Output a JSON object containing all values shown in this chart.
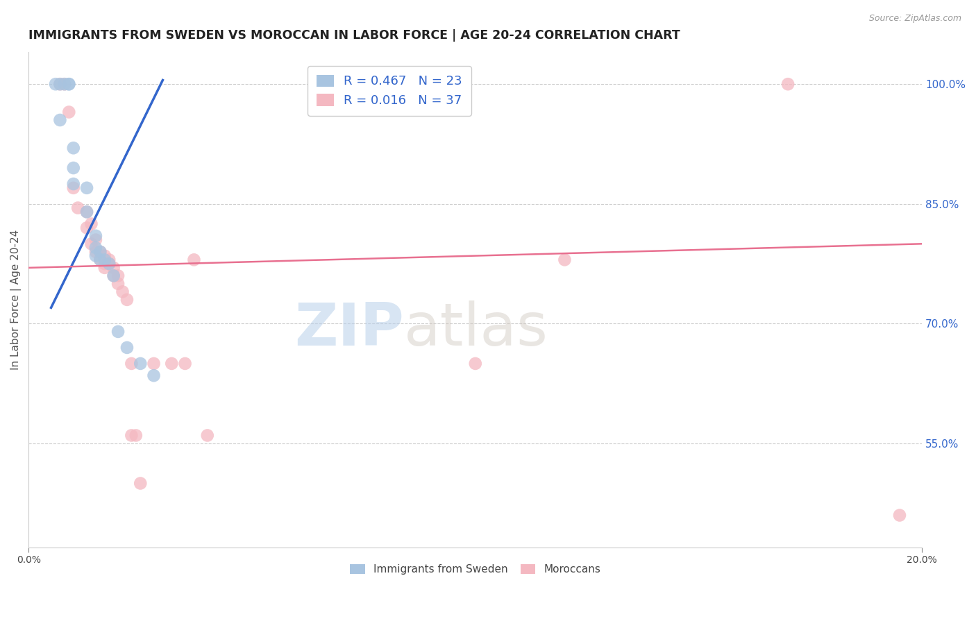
{
  "title": "IMMIGRANTS FROM SWEDEN VS MOROCCAN IN LABOR FORCE | AGE 20-24 CORRELATION CHART",
  "source": "Source: ZipAtlas.com",
  "ylabel": "In Labor Force | Age 20-24",
  "xlim": [
    0.0,
    0.2
  ],
  "ylim": [
    0.42,
    1.04
  ],
  "yticks": [
    0.55,
    0.7,
    0.85,
    1.0
  ],
  "yticklabels": [
    "55.0%",
    "70.0%",
    "85.0%",
    "100.0%"
  ],
  "sweden_color": "#a8c4e0",
  "moroccan_color": "#f4b8c1",
  "sweden_line_color": "#3366cc",
  "moroccan_line_color": "#e87090",
  "legend_r_color": "#3366cc",
  "watermark_zip": "ZIP",
  "watermark_atlas": "atlas",
  "sweden_R": "R = 0.467",
  "sweden_N": "N = 23",
  "moroccan_R": "R = 0.016",
  "moroccan_N": "N = 37",
  "sweden_points": [
    [
      0.006,
      1.0
    ],
    [
      0.007,
      1.0
    ],
    [
      0.007,
      0.955
    ],
    [
      0.008,
      1.0
    ],
    [
      0.009,
      1.0
    ],
    [
      0.009,
      1.0
    ],
    [
      0.01,
      0.92
    ],
    [
      0.01,
      0.895
    ],
    [
      0.01,
      0.875
    ],
    [
      0.013,
      0.87
    ],
    [
      0.013,
      0.84
    ],
    [
      0.015,
      0.81
    ],
    [
      0.015,
      0.795
    ],
    [
      0.015,
      0.785
    ],
    [
      0.016,
      0.79
    ],
    [
      0.016,
      0.78
    ],
    [
      0.017,
      0.78
    ],
    [
      0.018,
      0.775
    ],
    [
      0.019,
      0.76
    ],
    [
      0.02,
      0.69
    ],
    [
      0.022,
      0.67
    ],
    [
      0.025,
      0.65
    ],
    [
      0.028,
      0.635
    ]
  ],
  "moroccan_points": [
    [
      0.007,
      1.0
    ],
    [
      0.008,
      1.0
    ],
    [
      0.009,
      0.965
    ],
    [
      0.01,
      0.87
    ],
    [
      0.011,
      0.845
    ],
    [
      0.013,
      0.84
    ],
    [
      0.013,
      0.82
    ],
    [
      0.014,
      0.825
    ],
    [
      0.014,
      0.8
    ],
    [
      0.015,
      0.805
    ],
    [
      0.015,
      0.79
    ],
    [
      0.016,
      0.79
    ],
    [
      0.016,
      0.78
    ],
    [
      0.017,
      0.785
    ],
    [
      0.017,
      0.775
    ],
    [
      0.017,
      0.77
    ],
    [
      0.018,
      0.78
    ],
    [
      0.018,
      0.775
    ],
    [
      0.019,
      0.77
    ],
    [
      0.019,
      0.76
    ],
    [
      0.02,
      0.76
    ],
    [
      0.02,
      0.75
    ],
    [
      0.021,
      0.74
    ],
    [
      0.022,
      0.73
    ],
    [
      0.023,
      0.65
    ],
    [
      0.023,
      0.56
    ],
    [
      0.024,
      0.56
    ],
    [
      0.025,
      0.5
    ],
    [
      0.028,
      0.65
    ],
    [
      0.032,
      0.65
    ],
    [
      0.035,
      0.65
    ],
    [
      0.037,
      0.78
    ],
    [
      0.04,
      0.56
    ],
    [
      0.1,
      0.65
    ],
    [
      0.12,
      0.78
    ],
    [
      0.17,
      1.0
    ],
    [
      0.195,
      0.46
    ]
  ],
  "sweden_trend_x": [
    0.005,
    0.03
  ],
  "sweden_trend_y": [
    0.72,
    1.005
  ],
  "moroccan_trend_x": [
    0.0,
    0.2
  ],
  "moroccan_trend_y": [
    0.77,
    0.8
  ]
}
